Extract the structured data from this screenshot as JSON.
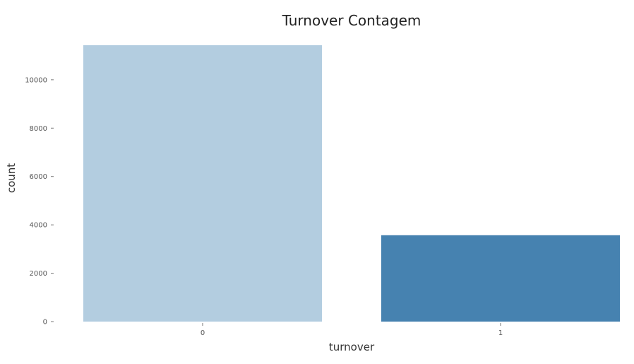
{
  "chart_data": {
    "type": "bar",
    "title": "Turnover Contagem",
    "xlabel": "turnover",
    "ylabel": "count",
    "categories": [
      "0",
      "1"
    ],
    "values": [
      11428,
      3571
    ],
    "colors": [
      "#b3cde0",
      "#4682b0"
    ],
    "ylim": [
      0,
      11428
    ],
    "yticks": [
      0,
      2000,
      4000,
      6000,
      8000,
      10000
    ],
    "ytick_labels": [
      "0",
      "2000",
      "4000",
      "6000",
      "8000",
      "10000"
    ],
    "grid": false,
    "legend": "none"
  }
}
